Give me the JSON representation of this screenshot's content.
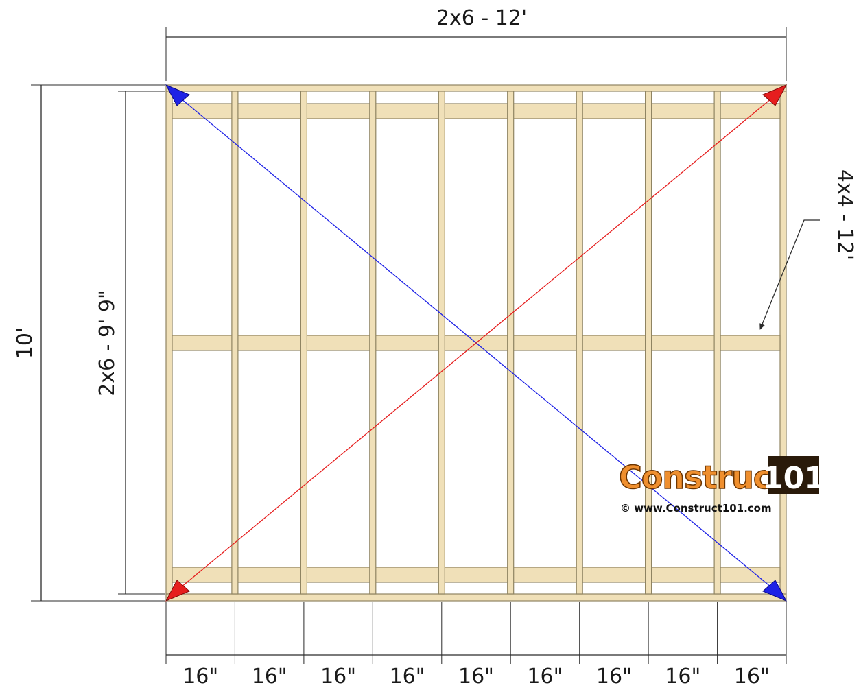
{
  "dimensions": {
    "top_width": "2x6 - 12'",
    "overall_depth": "10'",
    "joist_length": "2x6 - 9' 9\"",
    "skid_callout": "4x4 - 12'",
    "spacing_labels": [
      "16\"",
      "16\"",
      "16\"",
      "16\"",
      "16\"",
      "16\"",
      "16\"",
      "16\"",
      "16\""
    ]
  },
  "diagonals": {
    "blue": "#1e22e6",
    "red": "#e61e1e"
  },
  "logo": {
    "brand": "Construct",
    "number": "101",
    "url": "© www.Construct101.com",
    "colors": {
      "brand": "#ef8f2e",
      "box": "#2a1a0a"
    }
  },
  "colors": {
    "lumber_fill": "#f0e0b8",
    "lumber_stroke": "#8f8462",
    "dimension_line": "#2b2b2b"
  }
}
